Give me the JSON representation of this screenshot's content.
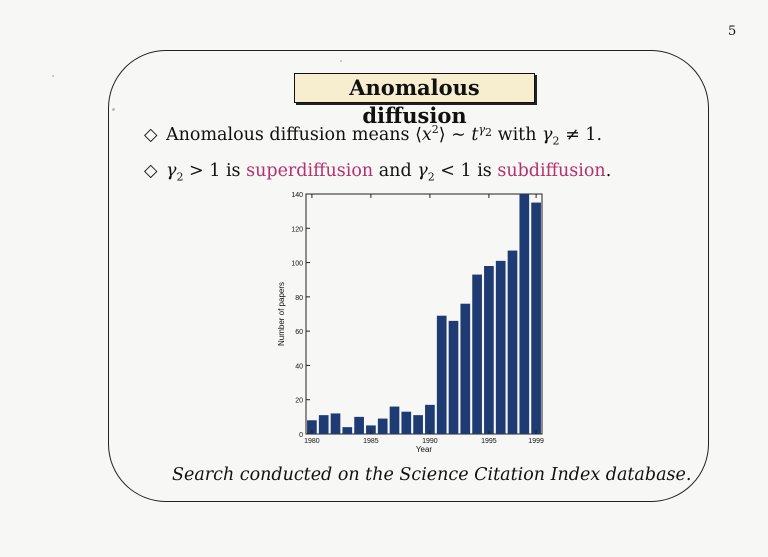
{
  "page_number": "5",
  "title": "Anomalous diffusion",
  "bullets": {
    "marker": "◇",
    "b1": {
      "text_a": "Anomalous diffusion means ⟨",
      "x": "x",
      "sup2": "2",
      "text_b": "⟩ ∼ ",
      "t": "t",
      "gamma": "γ",
      "sub2": "2",
      "text_c": " with ",
      "gamma2": "γ",
      "sub2b": "2",
      "text_d": " ≠ 1."
    },
    "b2": {
      "gamma": "γ",
      "sub": "2",
      "text_a": " > 1 is ",
      "super": "superdiffusion",
      "text_b": " and ",
      "gamma2": "γ",
      "sub2": "2",
      "text_c": " < 1 is ",
      "subd": "subdiffusion",
      "text_d": "."
    }
  },
  "caption": "Search conducted on the Science Citation Index database.",
  "colors": {
    "bar": "#1f3b73",
    "accent_text": "#b5306f",
    "title_bg": "#f6eecf"
  },
  "chart_data": {
    "type": "bar",
    "xlabel": "Year",
    "ylabel": "Number of papers",
    "x": [
      1980,
      1981,
      1982,
      1983,
      1984,
      1985,
      1986,
      1987,
      1988,
      1989,
      1990,
      1991,
      1992,
      1993,
      1994,
      1995,
      1996,
      1997,
      1998,
      1999
    ],
    "values": [
      8,
      11,
      12,
      4,
      10,
      5,
      9,
      16,
      13,
      11,
      17,
      69,
      66,
      76,
      93,
      98,
      101,
      107,
      140,
      135
    ],
    "ylim": [
      0,
      140
    ],
    "yticks": [
      0,
      20,
      40,
      60,
      80,
      100,
      120,
      140
    ],
    "xticks": [
      1980,
      1985,
      1990,
      1995,
      1999
    ],
    "grid": false
  }
}
